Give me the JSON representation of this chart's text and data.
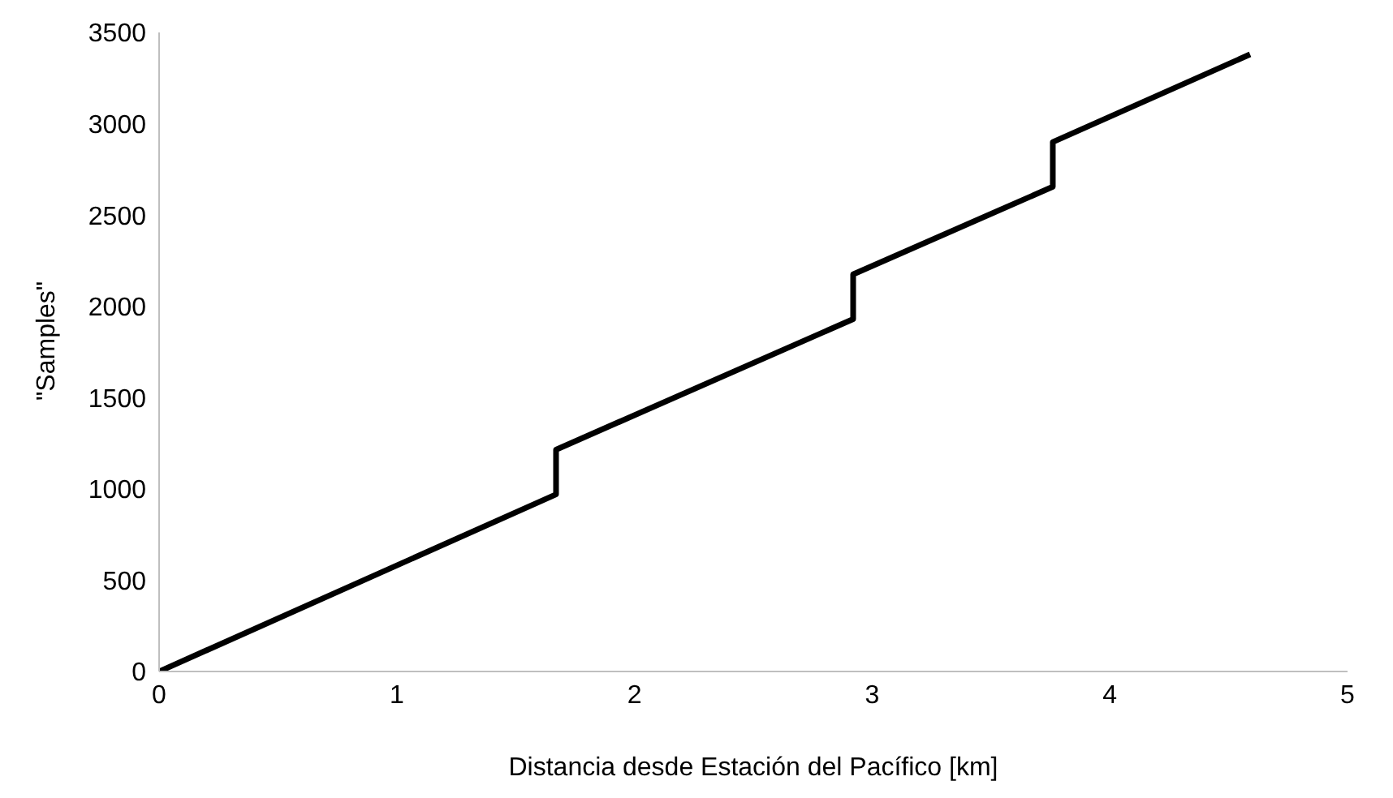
{
  "chart_data": {
    "type": "line",
    "xlabel": "Distancia desde Estación del Pacífico [km]",
    "ylabel": "\"Samples\"",
    "x": [
      0,
      1.67,
      1.67,
      2.92,
      2.92,
      3.76,
      3.76,
      4.59
    ],
    "series": [
      {
        "color": "#000000",
        "values": [
          0,
          970,
          1215,
          1930,
          2175,
          2655,
          2900,
          3380
        ]
      }
    ],
    "xlim": [
      0,
      5
    ],
    "xticks": [
      0,
      1,
      2,
      3,
      4,
      5
    ],
    "ylim": [
      0,
      3500
    ],
    "yticks": [
      0,
      500,
      1000,
      1500,
      2000,
      2500,
      3000,
      3500
    ],
    "grid": false,
    "legend": false,
    "marker": "none",
    "line_style": "solid"
  }
}
